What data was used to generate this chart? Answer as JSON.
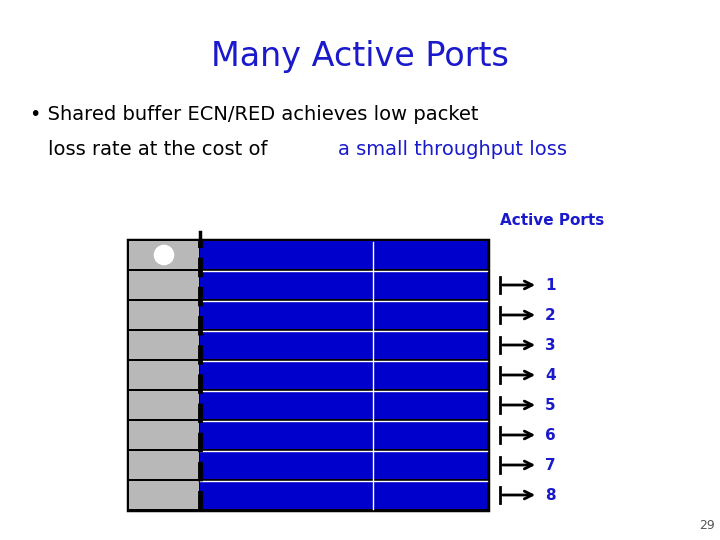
{
  "title": "Many Active Ports",
  "title_color": "#1a1acc",
  "bullet_line1_black": "Shared buffer ECN/RED achieves low packet",
  "bullet_line2_black": "loss rate at the cost of ",
  "bullet_line2_blue": "a small throughput loss",
  "bullet_color_black": "#000000",
  "bullet_color_blue": "#1a1acc",
  "legend_title": "Active Ports",
  "legend_color": "#1a1acc",
  "num_rows": 9,
  "blue_color": "#0000cc",
  "gray_color": "#b8b8b8",
  "white_color": "#ffffff",
  "black_color": "#000000",
  "slide_number": "29",
  "arrow_labels": [
    "1",
    "2",
    "3",
    "4",
    "5",
    "6",
    "7",
    "8"
  ]
}
